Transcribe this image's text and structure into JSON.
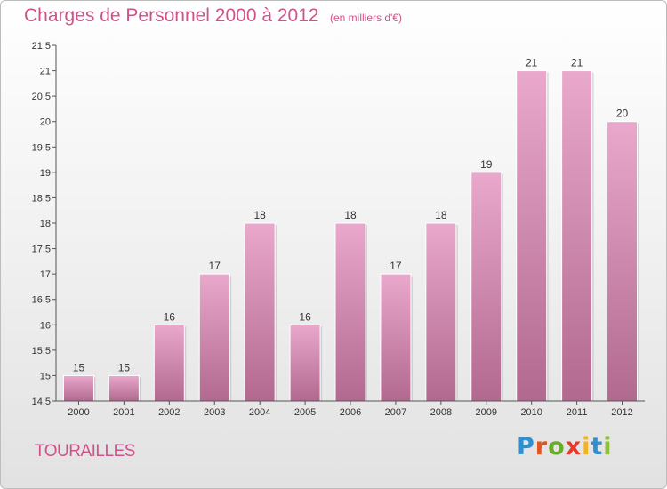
{
  "header": {
    "title": "Charges de Personnel 2000 à 2012",
    "subtitle": "(en milliers d'€)"
  },
  "footer": {
    "commune": "TOURAILLES",
    "brand": "Proxiti"
  },
  "colors": {
    "title": "#d0528a",
    "bar_top": "#e9a8cc",
    "bar_bottom": "#b2698f",
    "brand_letters": [
      "#2f8fd0",
      "#e0561f",
      "#6aab2c",
      "#e63a2b",
      "#f4b31c",
      "#2f8fd0",
      "#8cbf33"
    ]
  },
  "chart_data": {
    "type": "bar",
    "title": "Charges de Personnel 2000 à 2012",
    "subtitle": "(en milliers d'€)",
    "xlabel": "",
    "ylabel": "",
    "categories": [
      "2000",
      "2001",
      "2002",
      "2003",
      "2004",
      "2005",
      "2006",
      "2007",
      "2008",
      "2009",
      "2010",
      "2011",
      "2012"
    ],
    "values": [
      15,
      15,
      16,
      17,
      18,
      16,
      18,
      17,
      18,
      19,
      21,
      21,
      20
    ],
    "data_labels": [
      "15",
      "15",
      "16",
      "17",
      "18",
      "16",
      "18",
      "17",
      "18",
      "19",
      "21",
      "21",
      "20"
    ],
    "ylim": [
      14.5,
      21.5
    ],
    "yticks": [
      14.5,
      15,
      15.5,
      16,
      16.5,
      17,
      17.5,
      18,
      18.5,
      19,
      19.5,
      20,
      20.5,
      21,
      21.5
    ],
    "ytick_labels": [
      "14.5",
      "15",
      "15.5",
      "16",
      "16.5",
      "17",
      "17.5",
      "18",
      "18.5",
      "19",
      "19.5",
      "20",
      "20.5",
      "21",
      "21.5"
    ],
    "grid": false,
    "legend": "none"
  }
}
